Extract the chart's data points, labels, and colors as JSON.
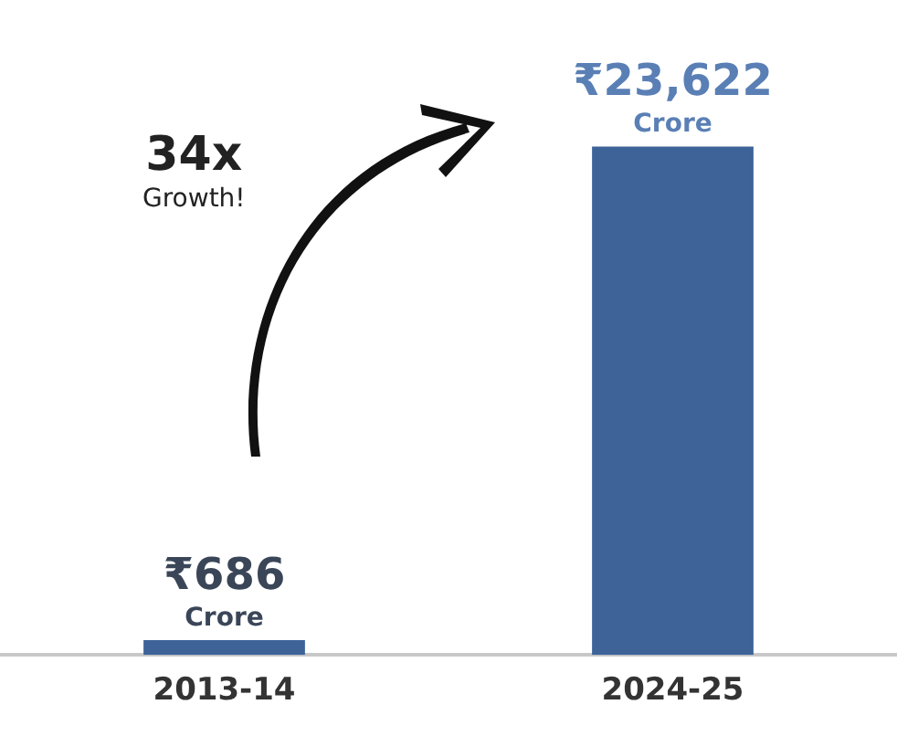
{
  "chart_data": {
    "type": "bar",
    "categories": [
      "2013-14",
      "2024-25"
    ],
    "values": [
      686,
      23622
    ],
    "color": "#3d6399",
    "value_labels": [
      "₹686 Crore",
      "₹23,622 Crore"
    ],
    "annotations": [
      "34x",
      "Growth!"
    ],
    "grid": false,
    "legend": false
  }
}
